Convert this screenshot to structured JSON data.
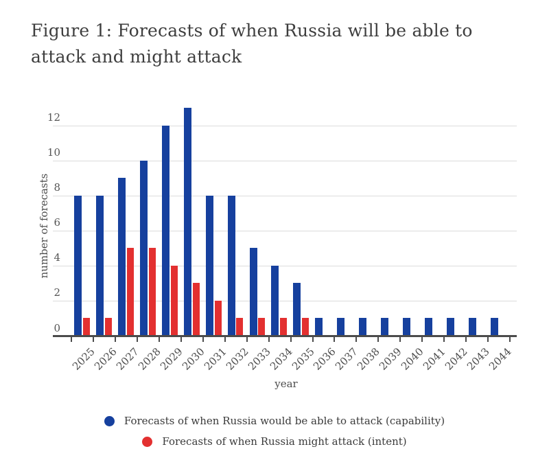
{
  "figure": {
    "title_lines": [
      "Figure 1: Forecasts of when Russia will be able to",
      "attack and might attack"
    ]
  },
  "chart_data": {
    "type": "bar",
    "title": "Figure 1: Forecasts of when Russia will be able to attack and might attack",
    "categories": [
      "2025",
      "2026",
      "2027",
      "2028",
      "2029",
      "2030",
      "2031",
      "2032",
      "2033",
      "2034",
      "2035",
      "2036",
      "2037",
      "2038",
      "2039",
      "2040",
      "2041",
      "2042",
      "2043",
      "2044"
    ],
    "series": [
      {
        "name": "Forecasts of when Russia would be able to attack (capability)",
        "color": "#16409e",
        "values": [
          8,
          8,
          9,
          10,
          12,
          13,
          8,
          8,
          5,
          4,
          3,
          1,
          1,
          1,
          1,
          1,
          1,
          1,
          1,
          1
        ]
      },
      {
        "name": "Forecasts of when Russia might attack (intent)",
        "color": "#e33030",
        "values": [
          1,
          1,
          5,
          5,
          4,
          3,
          2,
          1,
          1,
          1,
          1,
          0,
          0,
          0,
          0,
          0,
          0,
          0,
          0,
          0
        ]
      }
    ],
    "xlabel": "year",
    "ylabel": "number of forecasts",
    "ylim": [
      0,
      13
    ],
    "yticks": [
      0,
      2,
      4,
      6,
      8,
      10,
      12
    ],
    "grid": true,
    "legend_position": "bottom"
  }
}
